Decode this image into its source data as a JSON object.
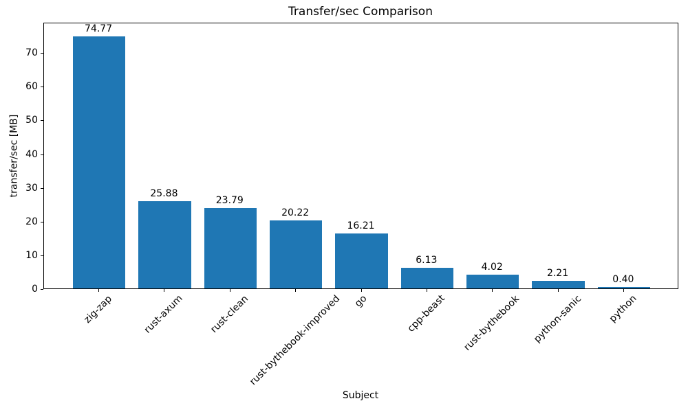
{
  "chart_data": {
    "type": "bar",
    "title": "Transfer/sec Comparison",
    "xlabel": "Subject",
    "ylabel": "transfer/sec [MB]",
    "categories": [
      "zig-zap",
      "rust-axum",
      "rust-clean",
      "rust-bythebook-improved",
      "go",
      "cpp-beast",
      "rust-bythebook",
      "python-sanic",
      "python"
    ],
    "values": [
      74.77,
      25.88,
      23.79,
      20.22,
      16.21,
      6.13,
      4.02,
      2.21,
      0.4
    ],
    "bar_labels": [
      "74.77",
      "25.88",
      "23.79",
      "20.22",
      "16.21",
      "6.13",
      "4.02",
      "2.21",
      "0.40"
    ],
    "y_ticks": [
      0,
      10,
      20,
      30,
      40,
      50,
      60,
      70
    ],
    "ylim": [
      0,
      79
    ],
    "bar_color": "#1f77b4",
    "axis_color": "#000000",
    "text_color": "#000000",
    "grid": false,
    "x_tick_rotation_deg": 45
  }
}
